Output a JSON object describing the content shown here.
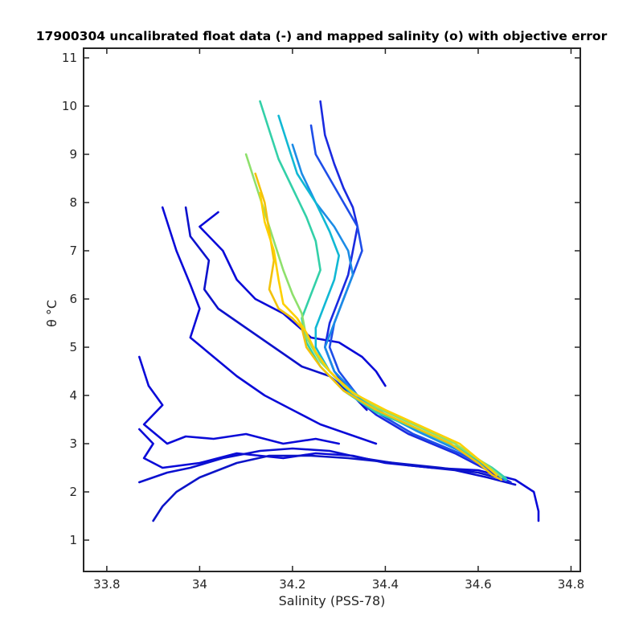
{
  "chart_data": {
    "type": "line",
    "title": "17900304 uncalibrated float data (-) and mapped salinity (o) with objective error",
    "xlabel": "Salinity (PSS-78)",
    "ylabel": "θ °C",
    "xlim": [
      33.75,
      34.82
    ],
    "ylim": [
      0.35,
      11.2
    ],
    "xticks": [
      33.8,
      34.0,
      34.2,
      34.4,
      34.6,
      34.8
    ],
    "xtick_labels": [
      "33.8",
      "34",
      "34.2",
      "34.4",
      "34.6",
      "34.8"
    ],
    "yticks": [
      1,
      2,
      3,
      4,
      5,
      6,
      7,
      8,
      9,
      10,
      11
    ],
    "ytick_labels": [
      "1",
      "2",
      "3",
      "4",
      "5",
      "6",
      "7",
      "8",
      "9",
      "10",
      "11"
    ],
    "grid": false,
    "legend": "none",
    "colormap": "parula (profile index, early = dark blue, late = yellow)",
    "series": [
      {
        "color": "#0a0ad8",
        "points": [
          [
            33.87,
            3.3
          ],
          [
            33.9,
            3.0
          ],
          [
            33.88,
            2.7
          ],
          [
            33.92,
            2.5
          ],
          [
            34.0,
            2.6
          ],
          [
            34.08,
            2.8
          ],
          [
            34.18,
            2.7
          ],
          [
            34.25,
            2.8
          ],
          [
            34.33,
            2.75
          ],
          [
            34.4,
            2.6
          ],
          [
            34.5,
            2.5
          ],
          [
            34.6,
            2.45
          ],
          [
            34.68,
            2.25
          ],
          [
            34.72,
            2.0
          ],
          [
            34.73,
            1.6
          ],
          [
            34.73,
            1.4
          ]
        ]
      },
      {
        "color": "#0b10d0",
        "points": [
          [
            33.87,
            2.2
          ],
          [
            33.93,
            2.4
          ],
          [
            33.98,
            2.5
          ],
          [
            34.05,
            2.7
          ],
          [
            34.13,
            2.85
          ],
          [
            34.2,
            2.9
          ],
          [
            34.28,
            2.85
          ],
          [
            34.35,
            2.7
          ],
          [
            34.45,
            2.55
          ],
          [
            34.55,
            2.45
          ],
          [
            34.62,
            2.3
          ],
          [
            34.68,
            2.15
          ]
        ]
      },
      {
        "color": "#0c14c8",
        "points": [
          [
            33.9,
            1.4
          ],
          [
            33.92,
            1.7
          ],
          [
            33.95,
            2.0
          ],
          [
            34.0,
            2.3
          ],
          [
            34.08,
            2.6
          ],
          [
            34.15,
            2.75
          ],
          [
            34.24,
            2.75
          ],
          [
            34.32,
            2.7
          ],
          [
            34.42,
            2.6
          ],
          [
            34.52,
            2.5
          ],
          [
            34.6,
            2.4
          ],
          [
            34.66,
            2.25
          ]
        ]
      },
      {
        "color": "#0a0ad8",
        "points": [
          [
            33.87,
            4.8
          ],
          [
            33.89,
            4.2
          ],
          [
            33.92,
            3.8
          ],
          [
            33.88,
            3.4
          ],
          [
            33.93,
            3.0
          ],
          [
            33.97,
            3.15
          ],
          [
            34.03,
            3.1
          ],
          [
            34.1,
            3.2
          ],
          [
            34.18,
            3.0
          ],
          [
            34.25,
            3.1
          ],
          [
            34.3,
            3.0
          ]
        ]
      },
      {
        "color": "#0a0ad8",
        "points": [
          [
            33.92,
            7.9
          ],
          [
            33.95,
            7.0
          ],
          [
            33.98,
            6.3
          ],
          [
            34.0,
            5.8
          ],
          [
            33.98,
            5.2
          ],
          [
            34.03,
            4.8
          ],
          [
            34.08,
            4.4
          ],
          [
            34.14,
            4.0
          ],
          [
            34.2,
            3.7
          ],
          [
            34.26,
            3.4
          ],
          [
            34.32,
            3.2
          ],
          [
            34.38,
            3.0
          ]
        ]
      },
      {
        "color": "#0d12cc",
        "points": [
          [
            33.97,
            7.9
          ],
          [
            33.98,
            7.3
          ],
          [
            34.02,
            6.8
          ],
          [
            34.01,
            6.2
          ],
          [
            34.04,
            5.8
          ],
          [
            34.1,
            5.4
          ],
          [
            34.16,
            5.0
          ],
          [
            34.22,
            4.6
          ],
          [
            34.28,
            4.4
          ],
          [
            34.33,
            4.0
          ],
          [
            34.36,
            3.7
          ]
        ]
      },
      {
        "color": "#0a0ad8",
        "points": [
          [
            34.04,
            7.8
          ],
          [
            34.0,
            7.5
          ],
          [
            34.05,
            7.0
          ],
          [
            34.08,
            6.4
          ],
          [
            34.12,
            6.0
          ],
          [
            34.18,
            5.7
          ],
          [
            34.24,
            5.2
          ],
          [
            34.3,
            5.1
          ],
          [
            34.35,
            4.8
          ],
          [
            34.38,
            4.5
          ],
          [
            34.4,
            4.2
          ]
        ]
      },
      {
        "color": "#1a2ae0",
        "points": [
          [
            34.26,
            10.1
          ],
          [
            34.27,
            9.4
          ],
          [
            34.29,
            8.8
          ],
          [
            34.31,
            8.3
          ],
          [
            34.33,
            7.9
          ],
          [
            34.34,
            7.5
          ],
          [
            34.33,
            7.0
          ],
          [
            34.32,
            6.5
          ],
          [
            34.3,
            6.0
          ],
          [
            34.28,
            5.5
          ],
          [
            34.27,
            5.0
          ],
          [
            34.29,
            4.5
          ],
          [
            34.33,
            4.0
          ],
          [
            34.38,
            3.6
          ],
          [
            34.45,
            3.2
          ],
          [
            34.55,
            2.8
          ],
          [
            34.62,
            2.45
          ],
          [
            34.67,
            2.2
          ]
        ]
      },
      {
        "color": "#1e4ee8",
        "points": [
          [
            34.24,
            9.6
          ],
          [
            34.25,
            9.0
          ],
          [
            34.28,
            8.5
          ],
          [
            34.31,
            8.0
          ],
          [
            34.34,
            7.5
          ],
          [
            34.35,
            7.0
          ],
          [
            34.33,
            6.5
          ],
          [
            34.31,
            6.0
          ],
          [
            34.29,
            5.5
          ],
          [
            34.28,
            5.0
          ],
          [
            34.3,
            4.5
          ],
          [
            34.34,
            4.0
          ],
          [
            34.39,
            3.6
          ],
          [
            34.46,
            3.2
          ],
          [
            34.56,
            2.8
          ],
          [
            34.63,
            2.45
          ],
          [
            34.66,
            2.25
          ]
        ]
      },
      {
        "color": "#1c8ce6",
        "points": [
          [
            34.2,
            9.2
          ],
          [
            34.22,
            8.6
          ],
          [
            34.25,
            8.0
          ],
          [
            34.29,
            7.5
          ],
          [
            34.32,
            7.0
          ],
          [
            34.33,
            6.5
          ],
          [
            34.31,
            6.0
          ],
          [
            34.29,
            5.5
          ],
          [
            34.27,
            5.0
          ],
          [
            34.29,
            4.5
          ],
          [
            34.34,
            4.0
          ],
          [
            34.4,
            3.6
          ],
          [
            34.47,
            3.25
          ],
          [
            34.56,
            2.85
          ],
          [
            34.63,
            2.45
          ],
          [
            34.66,
            2.25
          ]
        ]
      },
      {
        "color": "#11b8d4",
        "points": [
          [
            34.17,
            9.8
          ],
          [
            34.19,
            9.2
          ],
          [
            34.21,
            8.6
          ],
          [
            34.25,
            8.0
          ],
          [
            34.28,
            7.4
          ],
          [
            34.3,
            6.9
          ],
          [
            34.29,
            6.4
          ],
          [
            34.27,
            5.9
          ],
          [
            34.25,
            5.4
          ],
          [
            34.25,
            5.0
          ],
          [
            34.28,
            4.5
          ],
          [
            34.33,
            4.0
          ],
          [
            34.4,
            3.6
          ],
          [
            34.48,
            3.25
          ],
          [
            34.57,
            2.85
          ],
          [
            34.63,
            2.45
          ],
          [
            34.66,
            2.25
          ]
        ]
      },
      {
        "color": "#33d0a8",
        "points": [
          [
            34.13,
            10.1
          ],
          [
            34.15,
            9.5
          ],
          [
            34.17,
            8.9
          ],
          [
            34.2,
            8.3
          ],
          [
            34.23,
            7.7
          ],
          [
            34.25,
            7.2
          ],
          [
            34.26,
            6.6
          ],
          [
            34.24,
            6.1
          ],
          [
            34.22,
            5.6
          ],
          [
            34.23,
            5.1
          ],
          [
            34.26,
            4.6
          ],
          [
            34.31,
            4.1
          ],
          [
            34.38,
            3.65
          ],
          [
            34.47,
            3.3
          ],
          [
            34.56,
            2.9
          ],
          [
            34.63,
            2.5
          ],
          [
            34.66,
            2.28
          ]
        ]
      },
      {
        "color": "#8ee06c",
        "points": [
          [
            34.1,
            9.0
          ],
          [
            34.12,
            8.4
          ],
          [
            34.14,
            7.8
          ],
          [
            34.16,
            7.2
          ],
          [
            34.18,
            6.6
          ],
          [
            34.2,
            6.1
          ],
          [
            34.22,
            5.7
          ],
          [
            34.23,
            5.2
          ],
          [
            34.26,
            4.7
          ],
          [
            34.31,
            4.2
          ],
          [
            34.38,
            3.75
          ],
          [
            34.46,
            3.4
          ],
          [
            34.55,
            3.0
          ],
          [
            34.62,
            2.55
          ],
          [
            34.65,
            2.3
          ]
        ]
      },
      {
        "color": "#f2c20c",
        "points": [
          [
            34.12,
            8.6
          ],
          [
            34.14,
            8.0
          ],
          [
            34.15,
            7.4
          ],
          [
            34.16,
            6.8
          ],
          [
            34.15,
            6.2
          ],
          [
            34.17,
            5.8
          ],
          [
            34.2,
            5.6
          ],
          [
            34.22,
            5.4
          ],
          [
            34.23,
            5.0
          ],
          [
            34.26,
            4.6
          ],
          [
            34.31,
            4.1
          ],
          [
            34.38,
            3.7
          ],
          [
            34.46,
            3.35
          ],
          [
            34.54,
            3.0
          ],
          [
            34.6,
            2.6
          ],
          [
            34.63,
            2.35
          ],
          [
            34.65,
            2.25
          ]
        ]
      },
      {
        "color": "#fdd000",
        "points": [
          [
            34.13,
            8.2
          ],
          [
            34.14,
            7.6
          ],
          [
            34.16,
            7.0
          ],
          [
            34.17,
            6.4
          ],
          [
            34.18,
            5.9
          ],
          [
            34.21,
            5.6
          ],
          [
            34.23,
            5.3
          ],
          [
            34.25,
            4.9
          ],
          [
            34.28,
            4.5
          ],
          [
            34.33,
            4.05
          ],
          [
            34.4,
            3.7
          ],
          [
            34.48,
            3.35
          ],
          [
            34.56,
            3.0
          ],
          [
            34.61,
            2.6
          ],
          [
            34.64,
            2.35
          ]
        ]
      }
    ]
  }
}
